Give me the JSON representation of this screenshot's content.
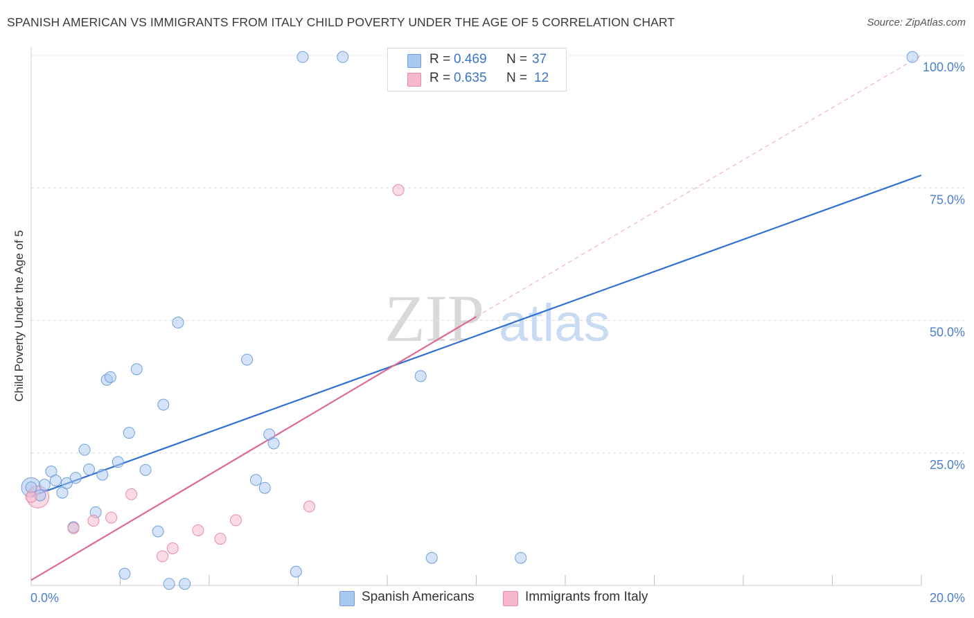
{
  "title": "SPANISH AMERICAN VS IMMIGRANTS FROM ITALY CHILD POVERTY UNDER THE AGE OF 5 CORRELATION CHART",
  "source": "Source: ZipAtlas.com",
  "watermark": {
    "zip": "ZIP",
    "atlas": "atlas"
  },
  "legend_top": [
    {
      "r_label": "R =",
      "r_value": "0.469",
      "n_label": "N =",
      "n_value": "37",
      "color": "#a9c8f0"
    },
    {
      "r_label": "R =",
      "r_value": "0.635",
      "n_label": "N =",
      "n_value": "12",
      "color": "#f6b8cb"
    }
  ],
  "legend_bottom": [
    {
      "label": "Spanish Americans",
      "color": "#a9c8f0"
    },
    {
      "label": "Immigrants from Italy",
      "color": "#f6b8cb"
    }
  ],
  "chart_data": {
    "type": "scatter",
    "title": "SPANISH AMERICAN VS IMMIGRANTS FROM ITALY CHILD POVERTY UNDER THE AGE OF 5 CORRELATION CHART",
    "xlabel": "",
    "ylabel": "Child Poverty Under the Age of 5",
    "xlim": [
      0,
      20
    ],
    "ylim": [
      0,
      100
    ],
    "x_tick_labels": [
      "0.0%",
      "20.0%"
    ],
    "y_tick_labels": [
      "100.0%",
      "75.0%",
      "50.0%",
      "25.0%"
    ],
    "y_ticks": [
      100,
      75,
      50,
      25
    ],
    "grid": true,
    "legend_position": "top-center",
    "series": [
      {
        "name": "Spanish Americans",
        "color": "#a9c8f0",
        "stroke": "#6f9fdc",
        "line_color": "#2f6fd0",
        "trend": {
          "x": [
            0,
            20
          ],
          "y": [
            16.8,
            77.4
          ]
        },
        "points": [
          [
            0.0,
            18.5
          ],
          [
            0.2,
            17.0
          ],
          [
            0.3,
            19.0
          ],
          [
            0.45,
            21.5
          ],
          [
            0.55,
            19.8
          ],
          [
            0.7,
            17.5
          ],
          [
            0.8,
            19.3
          ],
          [
            0.95,
            11.0
          ],
          [
            1.0,
            20.3
          ],
          [
            1.2,
            25.6
          ],
          [
            1.3,
            21.9
          ],
          [
            1.45,
            13.8
          ],
          [
            1.6,
            20.9
          ],
          [
            1.7,
            38.8
          ],
          [
            1.78,
            39.3
          ],
          [
            1.95,
            23.3
          ],
          [
            2.1,
            2.2
          ],
          [
            2.2,
            28.8
          ],
          [
            2.37,
            40.8
          ],
          [
            2.57,
            21.8
          ],
          [
            2.85,
            10.2
          ],
          [
            2.97,
            34.1
          ],
          [
            3.1,
            0.3
          ],
          [
            3.3,
            49.6
          ],
          [
            3.45,
            0.3
          ],
          [
            4.85,
            42.6
          ],
          [
            5.05,
            19.9
          ],
          [
            5.25,
            18.4
          ],
          [
            5.35,
            28.5
          ],
          [
            5.45,
            26.8
          ],
          [
            5.95,
            2.6
          ],
          [
            6.1,
            99.7
          ],
          [
            7.0,
            99.7
          ],
          [
            8.75,
            39.5
          ],
          [
            9.0,
            5.2
          ],
          [
            11.0,
            5.2
          ],
          [
            19.8,
            99.7
          ]
        ]
      },
      {
        "name": "Immigrants from Italy",
        "color": "#f6b8cb",
        "stroke": "#e98aa6",
        "line_color": "#e06894",
        "trend": {
          "x": [
            0,
            10
          ],
          "y": [
            1.0,
            50.7
          ]
        },
        "trend_extension": {
          "x": [
            10,
            20
          ],
          "y": [
            50.7,
            100
          ]
        },
        "points": [
          [
            0.0,
            16.7
          ],
          [
            0.95,
            10.8
          ],
          [
            1.4,
            12.2
          ],
          [
            1.8,
            12.8
          ],
          [
            2.25,
            17.2
          ],
          [
            2.95,
            5.5
          ],
          [
            3.18,
            7.0
          ],
          [
            3.75,
            10.4
          ],
          [
            4.25,
            8.8
          ],
          [
            4.6,
            12.3
          ],
          [
            6.25,
            14.9
          ],
          [
            8.25,
            74.6
          ]
        ]
      }
    ]
  }
}
